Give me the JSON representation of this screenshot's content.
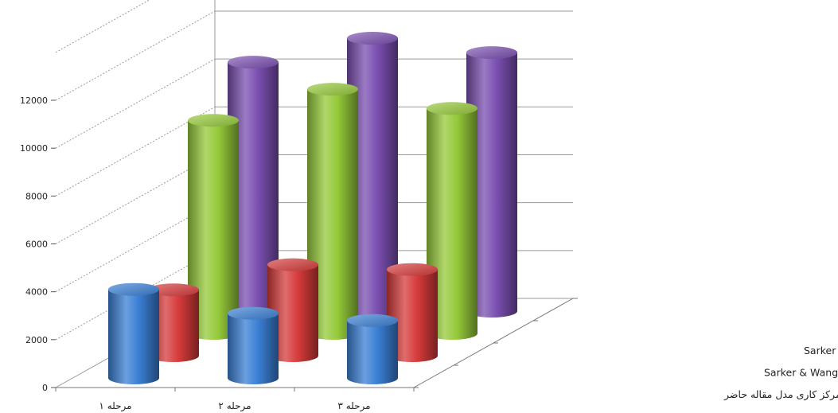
{
  "chart_data": {
    "type": "bar",
    "style": "3d-cylinder",
    "categories": [
      "مرحله ۱",
      "مرحله ۲",
      "مرحله ۳"
    ],
    "series": [
      {
        "name": "هزینه انبار قبل از مرکز کاری مدل مقاله حاضر",
        "values": [
          3700,
          2700,
          2400
        ],
        "color": "#3a7fd4"
      },
      {
        "name": "هزینه انبار قبل از مرکز کاری Sarker & Wang",
        "values": [
          2750,
          3800,
          3600
        ],
        "color": "#d63b3b"
      },
      {
        "name": "هزینه انبار بعد از مرکز کاری Sarker & Wang",
        "values": [
          8900,
          10200,
          9400
        ],
        "color": "#95c93a"
      },
      {
        "name": "هزینه انبار بعد از مرکز کاری مدل مقاله حاضر",
        "values": [
          10400,
          11400,
          10800
        ],
        "color": "#7a4fb0"
      }
    ],
    "yticks": [
      0,
      2000,
      4000,
      6000,
      8000,
      10000,
      12000
    ],
    "ylim": [
      0,
      12000
    ],
    "legend": "depth-axis-labels"
  }
}
